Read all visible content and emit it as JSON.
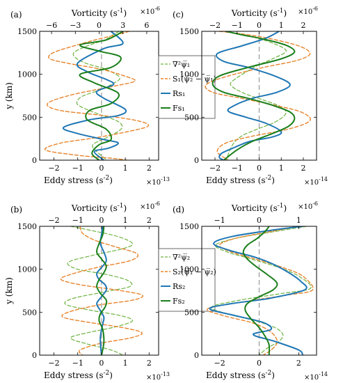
{
  "colors": {
    "lap": "#6db33f",
    "stretch": "#e8832a",
    "rs": "#1f77b4",
    "fs": "#1a7f1a",
    "zero": "#9a9a9a"
  },
  "chart_data": [
    {
      "panel": "(a)",
      "type": "line",
      "xlabel": "Eddy stress (s",
      "xlabel_exp": "-2",
      "xlabel_exp_close": ")",
      "x_multiplier": "×10",
      "x_multiplier_exp": "-13",
      "top_label": "Vorticity (s",
      "top_label_exp": "-1",
      "top_label_close": ")",
      "top_multiplier": "×10",
      "top_multiplier_exp": "-6",
      "ylabel": "y (km)",
      "xlim": [
        -2.6,
        2.4
      ],
      "x_ticks": [
        -2,
        -1,
        0,
        1,
        2
      ],
      "top_lim": [
        -7.5,
        7.5
      ],
      "top_ticks": [
        -6,
        -3,
        0,
        3,
        6
      ],
      "ylim": [
        0,
        1500
      ],
      "y_ticks": [
        0,
        500,
        1000,
        1500
      ],
      "legend": [
        "∇²ψ̅₁",
        "S₁(ψ̅₂ − ψ̅₁)",
        "Rs₁",
        "Fs₁"
      ],
      "series": [
        {
          "name": "∇²ψ̅₁",
          "axis": "top",
          "style": "lap",
          "x": [
            2.5,
            1.6,
            0.7,
            -1.5,
            -3.2,
            -2.8,
            -1.4,
            0.8,
            2.6,
            1.5,
            0.2,
            -2.2,
            -2.8,
            -1.8,
            0.4,
            2.2,
            2.9,
            2.5,
            0.9,
            -0.8,
            -0.3,
            1.0
          ],
          "y": [
            1500,
            1450,
            1400,
            1330,
            1250,
            1180,
            1120,
            1060,
            960,
            880,
            820,
            740,
            660,
            600,
            520,
            460,
            400,
            340,
            260,
            180,
            100,
            0
          ]
        },
        {
          "name": "S₁(ψ̅₂ − ψ̅₁)",
          "axis": "top",
          "style": "stretch",
          "x": [
            3.8,
            2.2,
            -0.5,
            -3.2,
            -5.8,
            -6.2,
            -3.5,
            0.2,
            3.2,
            4.5,
            1.8,
            -3.5,
            -6.5,
            -5.0,
            0.5,
            4.8,
            6.2,
            4.0,
            -0.5,
            -4.8,
            -6.8,
            -3.0,
            1.8,
            3.5
          ],
          "y": [
            1500,
            1460,
            1400,
            1330,
            1250,
            1180,
            1120,
            1060,
            980,
            920,
            860,
            760,
            660,
            580,
            520,
            460,
            400,
            340,
            260,
            200,
            120,
            60,
            20,
            0
          ]
        },
        {
          "name": "Rs₁",
          "axis": "bottom",
          "style": "rs",
          "x": [
            0.4,
            0.9,
            0.1,
            -1.0,
            -0.6,
            0.2,
            0.5,
            -0.2,
            0.1,
            1.0,
            0.7,
            -0.5,
            -1.6,
            -1.0,
            0.1,
            0.7,
            0.3,
            -0.3,
            0.1
          ],
          "y": [
            1500,
            1360,
            1300,
            1130,
            1030,
            940,
            880,
            800,
            720,
            590,
            520,
            470,
            380,
            310,
            240,
            200,
            140,
            100,
            0
          ]
        },
        {
          "name": "Fs₁",
          "axis": "bottom",
          "style": "fs",
          "x": [
            0.9,
            0.2,
            -0.9,
            -0.1,
            0.8,
            0.4,
            -0.9,
            -0.3,
            0.7,
            0.4,
            -0.5,
            -0.6,
            0.2,
            0.4,
            -0.1,
            -0.4,
            -0.1
          ],
          "y": [
            1500,
            1400,
            1340,
            1270,
            1200,
            1080,
            1000,
            900,
            780,
            660,
            580,
            470,
            360,
            240,
            180,
            80,
            0
          ]
        }
      ]
    },
    {
      "panel": "(c)",
      "type": "line",
      "xlabel": "Eddy stress (s",
      "xlabel_exp": "-2",
      "xlabel_exp_close": ")",
      "x_multiplier": "×10",
      "x_multiplier_exp": "-14",
      "top_label": "Vorticity (s",
      "top_label_exp": "-1",
      "top_label_close": ")",
      "top_multiplier": "×10",
      "top_multiplier_exp": "-6",
      "ylabel": "",
      "xlim": [
        -2.6,
        2.6
      ],
      "x_ticks": [
        -2,
        -1,
        0,
        1,
        2
      ],
      "top_lim": [
        -2.6,
        2.6
      ],
      "top_ticks": [
        -2,
        -1,
        0,
        1,
        2
      ],
      "ylim": [
        0,
        1500
      ],
      "y_ticks": [
        0,
        500,
        1000,
        1500
      ],
      "legend": [],
      "series": [
        {
          "name": "∇²ψ̅₁",
          "axis": "top",
          "style": "lap",
          "x": [
            -1.5,
            -0.7,
            0.2,
            1.0,
            1.2,
            0.6,
            -0.1,
            -0.5,
            -1.0,
            -1.3,
            -0.7,
            0.2,
            1.0,
            1.2,
            0.7,
            -0.1,
            -0.8,
            -1.2,
            -1.5
          ],
          "y": [
            1500,
            1460,
            1400,
            1320,
            1260,
            1180,
            1100,
            1040,
            960,
            880,
            780,
            700,
            620,
            540,
            440,
            360,
            280,
            180,
            0
          ]
        },
        {
          "name": "S₁(ψ̅₂ − ψ̅₁)",
          "axis": "top",
          "style": "stretch",
          "x": [
            -1.8,
            -0.8,
            0.4,
            1.8,
            2.3,
            1.7,
            0.2,
            -1.4,
            -2.4,
            -2.1,
            -0.8,
            0.7,
            1.9,
            2.3,
            1.3,
            -0.3,
            -1.5,
            -1.9,
            -1.4
          ],
          "y": [
            1500,
            1470,
            1420,
            1330,
            1240,
            1160,
            1080,
            980,
            880,
            790,
            720,
            640,
            560,
            460,
            360,
            280,
            200,
            100,
            0
          ]
        },
        {
          "name": "Rs₁",
          "axis": "bottom",
          "style": "rs",
          "x": [
            0.9,
            0.3,
            -0.8,
            -1.9,
            -1.6,
            -0.5,
            0.7,
            1.4,
            0.8,
            -0.3,
            -1.1,
            -1.4,
            -0.6,
            0.3,
            1.0,
            0.6,
            -0.4,
            -1.1,
            -1.7,
            -1.8,
            -1.6
          ],
          "y": [
            1500,
            1420,
            1330,
            1240,
            1150,
            1080,
            980,
            880,
            790,
            720,
            640,
            570,
            500,
            430,
            330,
            270,
            220,
            150,
            80,
            30,
            0
          ]
        },
        {
          "name": "Fs₁",
          "axis": "bottom",
          "style": "fs",
          "x": [
            -1.5,
            -0.8,
            0.2,
            1.2,
            1.6,
            1.0,
            -0.5,
            -1.8,
            -2.1,
            -1.6,
            -0.5,
            0.6,
            1.4,
            1.6,
            1.3,
            0.5,
            -0.3,
            -1.0,
            -1.6
          ],
          "y": [
            1500,
            1460,
            1410,
            1340,
            1260,
            1180,
            1080,
            980,
            880,
            790,
            720,
            640,
            560,
            480,
            390,
            300,
            220,
            120,
            0
          ]
        }
      ]
    },
    {
      "panel": "(b)",
      "type": "line",
      "xlabel": "Eddy stress (s",
      "xlabel_exp": "-2",
      "xlabel_exp_close": ")",
      "x_multiplier": "×10",
      "x_multiplier_exp": "-13",
      "top_label": "Vorticity (s",
      "top_label_exp": "-1",
      "top_label_close": ")",
      "top_multiplier": "×10",
      "top_multiplier_exp": "-6",
      "ylabel": "y (km)",
      "xlim": [
        -2.6,
        2.4
      ],
      "x_ticks": [
        -2,
        -1,
        0,
        1,
        2
      ],
      "top_lim": [
        -2.6,
        2.4
      ],
      "top_ticks": [
        -2,
        -1,
        0,
        1,
        2
      ],
      "ylim": [
        0,
        1500
      ],
      "y_ticks": [
        0,
        500,
        1000,
        1500
      ],
      "legend": [
        "∇²ψ̅₂",
        "S₂(ψ̅₁ − ψ̅₂)",
        "Rs₂",
        "Fs₂"
      ],
      "series": [
        {
          "name": "∇²ψ̅₂",
          "axis": "top",
          "style": "lap",
          "x": [
            -1.3,
            -0.4,
            0.7,
            1.3,
            0.9,
            -0.4,
            -1.4,
            -1.0,
            0.2,
            1.1,
            1.2,
            0.2,
            -1.2,
            -1.5,
            -0.4,
            0.8,
            1.3,
            0.6,
            -0.6,
            -1.3,
            -0.6,
            0.4,
            0.9
          ],
          "y": [
            1500,
            1450,
            1380,
            1300,
            1240,
            1160,
            1080,
            1000,
            940,
            870,
            800,
            740,
            660,
            590,
            520,
            460,
            400,
            330,
            260,
            200,
            130,
            60,
            0
          ]
        },
        {
          "name": "S₂(ψ̅₁ − ψ̅₂)",
          "axis": "top",
          "style": "stretch",
          "x": [
            -0.9,
            -0.8,
            -0.3,
            0.6,
            1.5,
            1.2,
            -0.2,
            -1.3,
            -1.7,
            -0.9,
            0.6,
            1.7,
            1.3,
            -0.2,
            -1.4,
            -1.6,
            -0.5,
            0.9,
            1.7,
            1.2,
            0.0,
            -0.9,
            -0.8
          ],
          "y": [
            1500,
            1420,
            1340,
            1260,
            1180,
            1100,
            1020,
            940,
            880,
            820,
            760,
            700,
            640,
            580,
            500,
            440,
            380,
            320,
            260,
            200,
            140,
            60,
            0
          ]
        },
        {
          "name": "Rs₂",
          "axis": "bottom",
          "style": "rs",
          "x": [
            0.05,
            0.0,
            -0.05,
            0.1,
            0.2,
            0.0,
            -0.2,
            -0.1,
            0.15,
            0.2,
            0.0,
            -0.2,
            -0.05,
            0.1,
            0.05,
            -0.05,
            0.0
          ],
          "y": [
            1500,
            1400,
            1300,
            1200,
            1100,
            1020,
            950,
            880,
            820,
            760,
            680,
            600,
            520,
            440,
            360,
            200,
            0
          ]
        },
        {
          "name": "Fs₂",
          "axis": "bottom",
          "style": "fs",
          "x": [
            0.1,
            0.05,
            -0.1,
            -0.2,
            0.0,
            0.2,
            0.1,
            -0.1,
            -0.2,
            -0.05,
            0.2,
            0.15,
            -0.05,
            -0.1,
            0.05,
            0.1,
            0.0
          ],
          "y": [
            1500,
            1400,
            1300,
            1200,
            1120,
            1040,
            960,
            880,
            800,
            720,
            640,
            560,
            480,
            400,
            300,
            150,
            0
          ]
        }
      ]
    },
    {
      "panel": "(d)",
      "type": "line",
      "xlabel": "Eddy stress (s",
      "xlabel_exp": "-2",
      "xlabel_exp_close": ")",
      "x_multiplier": "×10",
      "x_multiplier_exp": "-14",
      "top_label": "Vorticity (s",
      "top_label_exp": "-1",
      "top_label_close": ")",
      "top_multiplier": "×10",
      "top_multiplier_exp": "-6",
      "ylabel": "",
      "xlim": [
        -2.9,
        2.9
      ],
      "x_ticks": [
        -2,
        0,
        2
      ],
      "top_lim": [
        -1.45,
        1.45
      ],
      "top_ticks": [
        -1,
        0,
        1
      ],
      "ylim": [
        0,
        1500
      ],
      "y_ticks": [
        0,
        500,
        1000,
        1500
      ],
      "legend": [],
      "series": [
        {
          "name": "∇²ψ̅₂",
          "axis": "top",
          "style": "lap",
          "x": [
            1.2,
            0.4,
            -0.6,
            -1.1,
            -0.8,
            -0.2,
            0.5,
            1.0,
            1.3,
            0.6,
            -0.5,
            -1.2,
            -0.8,
            -0.1,
            0.4,
            0.6,
            0.5,
            0.2,
            0.0
          ],
          "y": [
            1500,
            1440,
            1360,
            1280,
            1200,
            1120,
            1020,
            920,
            780,
            720,
            640,
            560,
            480,
            400,
            320,
            240,
            160,
            80,
            0
          ]
        },
        {
          "name": "S₂(ψ̅₁ − ψ̅₂)",
          "axis": "top",
          "style": "stretch",
          "x": [
            1.0,
            0.3,
            -0.6,
            -1.0,
            -0.7,
            -0.1,
            0.6,
            1.1,
            1.35,
            0.7,
            -0.4,
            -1.3,
            -0.9,
            -0.2,
            0.2,
            0.4,
            0.45,
            0.3,
            0.1
          ],
          "y": [
            1500,
            1440,
            1360,
            1280,
            1200,
            1120,
            1020,
            920,
            760,
            700,
            620,
            540,
            460,
            380,
            300,
            220,
            140,
            60,
            0
          ]
        },
        {
          "name": "Rs₂",
          "axis": "bottom",
          "style": "rs",
          "x": [
            2.2,
            0.8,
            -1.4,
            -2.3,
            -1.5,
            -0.2,
            0.7,
            1.5,
            2.1,
            2.3,
            0.5,
            -1.4,
            -2.5,
            -1.2,
            0.2,
            0.6,
            -0.3,
            0.8,
            2.0,
            2.2
          ],
          "y": [
            1500,
            1460,
            1380,
            1300,
            1220,
            1140,
            1060,
            960,
            860,
            760,
            660,
            600,
            540,
            460,
            380,
            300,
            240,
            160,
            60,
            0
          ]
        },
        {
          "name": "Fs₂",
          "axis": "bottom",
          "style": "fs",
          "x": [
            0.5,
            0.3,
            -0.1,
            -0.6,
            -0.8,
            -0.6,
            -0.2,
            0.4,
            0.9,
            0.7,
            0.0,
            -0.6,
            -0.7,
            -0.4,
            0.0,
            0.3,
            0.5,
            0.5
          ],
          "y": [
            1500,
            1440,
            1360,
            1280,
            1200,
            1120,
            1040,
            940,
            840,
            760,
            680,
            600,
            520,
            420,
            320,
            220,
            120,
            0
          ]
        }
      ]
    }
  ]
}
